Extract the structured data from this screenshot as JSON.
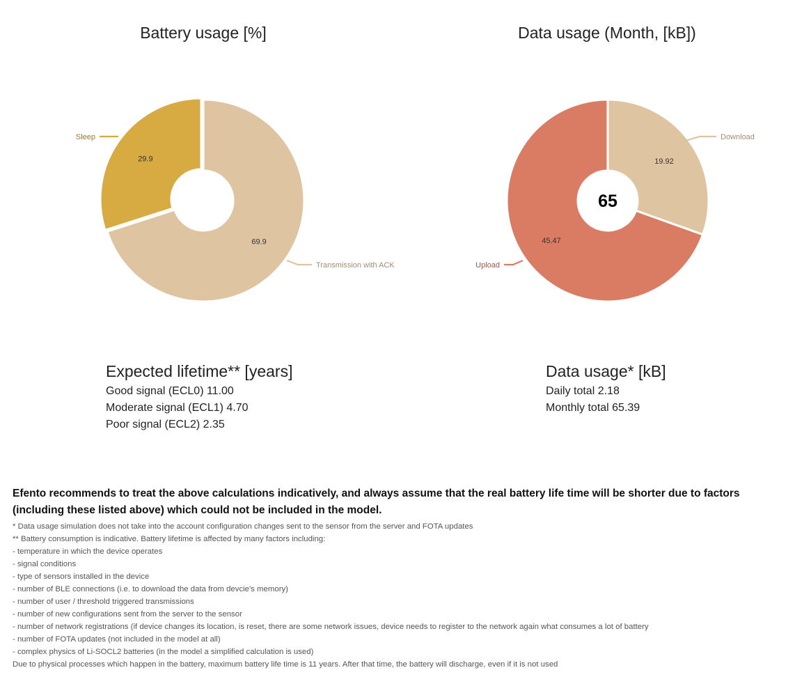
{
  "chart_data": [
    {
      "type": "pie",
      "variant": "donut",
      "title": "Battery usage [%]",
      "slices": [
        {
          "name": "Sleep",
          "value": 29.9,
          "color": "#d7aa42"
        },
        {
          "name": "Transmission with ACK",
          "value": 69.9,
          "color": "#dfc4a2"
        }
      ],
      "legend_placement": "callouts"
    },
    {
      "type": "pie",
      "variant": "donut",
      "title": "Data usage (Month, [kB])",
      "center_label": "65",
      "slices": [
        {
          "name": "Download",
          "value": 19.92,
          "color": "#dfc4a2"
        },
        {
          "name": "Upload",
          "value": 45.47,
          "color": "#d97c63"
        }
      ],
      "legend_placement": "callouts"
    }
  ],
  "lifetime": {
    "heading": "Expected lifetime** [years]",
    "rows": [
      "Good signal (ECL0) 11.00",
      "Moderate signal (ECL1) 4.70",
      "Poor signal (ECL2) 2.35"
    ]
  },
  "data_usage": {
    "heading": "Data usage* [kB]",
    "rows": [
      "Daily total 2.18",
      "Monthly total 65.39"
    ]
  },
  "disclaimer": {
    "lead": "Efento recommends to treat the above calculations indicatively, and always assume that the real battery life time will be shorter due to factors (including these listed above) which could not be included in the model.",
    "notes": [
      "* Data usage simulation does not take into the account configuration changes sent to the sensor from the server and FOTA updates",
      "** Battery consumption is indicative. Battery lifetime is affected by many factors including:",
      "- temperature in which the device operates",
      "- signal conditions",
      "- type of sensors installed in the device",
      "- number of BLE connections (i.e. to download the data from devcie's memory)",
      "- number of user / threshold triggered transmissions",
      "- number of new configurations sent from the server to the sensor",
      "- number of network registrations (if device changes its location, is reset, there are some network issues, device needs to register to the network again what consumes a lot of battery",
      "- number of FOTA updates (not included in the model at all)",
      "- complex physics of Li-SOCL2 batteries (in the model a simplified calculation is used)",
      "Due to physical processes which happen in the battery, maximum battery life time is 11 years. After that time, the battery will discharge, even if it is not used"
    ]
  }
}
